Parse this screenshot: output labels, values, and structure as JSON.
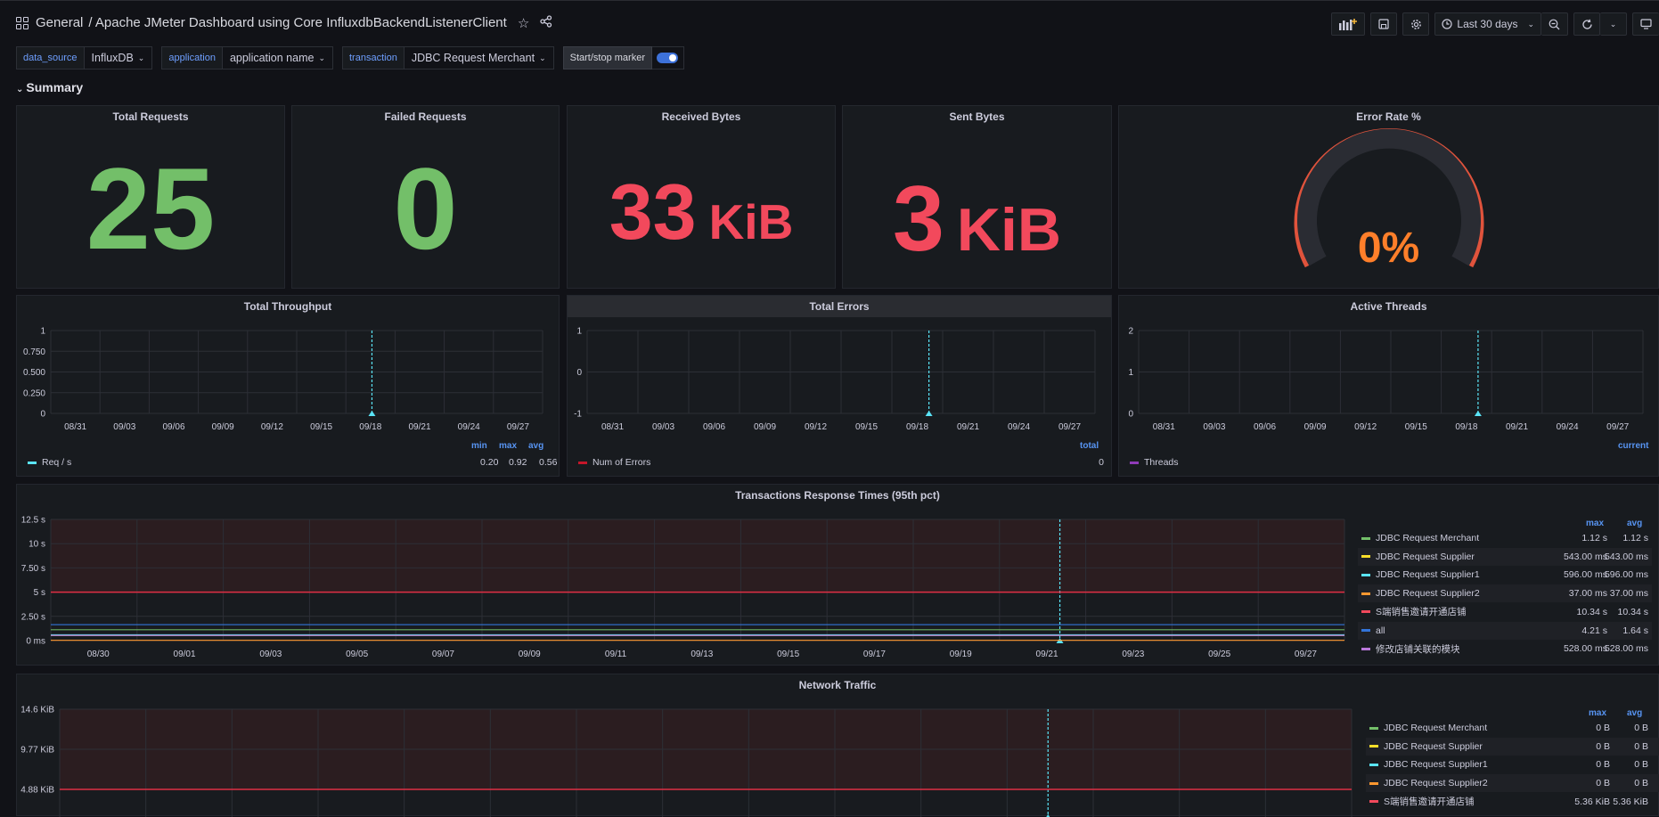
{
  "topbar": {
    "folder": "General",
    "title": "/ Apache JMeter Dashboard using Core InfluxdbBackendListenerClient",
    "time_range": "Last 30 days"
  },
  "variables": [
    {
      "label": "data_source",
      "value": "InfluxDB"
    },
    {
      "label": "application",
      "value": "application name"
    },
    {
      "label": "transaction",
      "value": "JDBC Request Merchant"
    }
  ],
  "marker": {
    "label": "Start/stop marker",
    "enabled": true
  },
  "row": {
    "title": "Summary"
  },
  "stats": {
    "total_requests": {
      "title": "Total Requests",
      "value": "25",
      "color": "#73bf69"
    },
    "failed_requests": {
      "title": "Failed Requests",
      "value": "0",
      "color": "#73bf69"
    },
    "received_bytes": {
      "title": "Received Bytes",
      "value": "33",
      "unit": "KiB",
      "color": "#f2495c"
    },
    "sent_bytes": {
      "title": "Sent Bytes",
      "value": "3",
      "unit": "KiB",
      "color": "#f2495c"
    },
    "error_rate": {
      "title": "Error Rate %",
      "value": "0%",
      "color": "#ff7f2a",
      "gauge_color": "#e0533c",
      "fraction": 0
    }
  },
  "colors": {
    "green": "#73bf69",
    "yellow": "#fade2a",
    "cyan": "#5ae4f7",
    "orange": "#ff9830",
    "red": "#f2495c",
    "blue": "#3274d9",
    "purple": "#b877d9",
    "threshold": "#e02f44"
  },
  "chart_data": [
    {
      "type": "line",
      "title": "Total Throughput",
      "x": [
        "08/31",
        "09/03",
        "09/06",
        "09/09",
        "09/12",
        "09/15",
        "09/18",
        "09/21",
        "09/24",
        "09/27"
      ],
      "yticks": [
        "1",
        "0.750",
        "0.500",
        "0.250",
        "0"
      ],
      "ylim": [
        0,
        1
      ],
      "series": [
        {
          "name": "Req / s",
          "min": "0.20",
          "max": "0.92",
          "avg": "0.56",
          "color": "#5ae4f7"
        }
      ],
      "legend_headers": [
        "min",
        "max",
        "avg"
      ]
    },
    {
      "type": "line",
      "title": "Total Errors",
      "x": [
        "08/31",
        "09/03",
        "09/06",
        "09/09",
        "09/12",
        "09/15",
        "09/18",
        "09/21",
        "09/24",
        "09/27"
      ],
      "yticks": [
        "1",
        "0",
        "-1"
      ],
      "ylim": [
        -1,
        1
      ],
      "series": [
        {
          "name": "Num of Errors",
          "total": "0",
          "color": "#c4162a"
        }
      ],
      "legend_headers": [
        "total"
      ]
    },
    {
      "type": "line",
      "title": "Active Threads",
      "x": [
        "08/31",
        "09/03",
        "09/06",
        "09/09",
        "09/12",
        "09/15",
        "09/18",
        "09/21",
        "09/24",
        "09/27"
      ],
      "yticks": [
        "2",
        "1",
        "0"
      ],
      "ylim": [
        0,
        2
      ],
      "series": [
        {
          "name": "Threads",
          "current": "",
          "color": "#8f3bb8"
        }
      ],
      "legend_headers": [
        "current"
      ]
    },
    {
      "type": "line",
      "title": "Transactions Response Times (95th pct)",
      "x": [
        "08/30",
        "09/01",
        "09/03",
        "09/05",
        "09/07",
        "09/09",
        "09/11",
        "09/13",
        "09/15",
        "09/17",
        "09/19",
        "09/21",
        "09/23",
        "09/25",
        "09/27"
      ],
      "yticks": [
        "12.5 s",
        "10 s",
        "7.50 s",
        "5 s",
        "2.50 s",
        "0 ms"
      ],
      "ylim": [
        0,
        12.5
      ],
      "threshold": 5,
      "legend_headers": [
        "max",
        "avg"
      ],
      "series": [
        {
          "name": "JDBC Request Merchant",
          "max": "1.12 s",
          "avg": "1.12 s",
          "color": "#73bf69",
          "level": 1.12
        },
        {
          "name": "JDBC Request Supplier",
          "max": "543.00 ms",
          "avg": "543.00 ms",
          "color": "#fade2a",
          "level": 0.543
        },
        {
          "name": "JDBC Request Supplier1",
          "max": "596.00 ms",
          "avg": "596.00 ms",
          "color": "#5ae4f7",
          "level": 0.596
        },
        {
          "name": "JDBC Request Supplier2",
          "max": "37.00 ms",
          "avg": "37.00 ms",
          "color": "#ff9830",
          "level": 0.037
        },
        {
          "name": "S端销售邀请开通店铺",
          "max": "10.34 s",
          "avg": "10.34 s",
          "color": "#f2495c",
          "level": 10.34
        },
        {
          "name": "all",
          "max": "4.21 s",
          "avg": "1.64 s",
          "color": "#3274d9",
          "level": 1.64
        },
        {
          "name": "修改店铺关联的模块",
          "max": "528.00 ms",
          "avg": "528.00 ms",
          "color": "#b877d9",
          "level": 0.528
        }
      ]
    },
    {
      "type": "line",
      "title": "Network Traffic",
      "yticks": [
        "14.6 KiB",
        "9.77 KiB",
        "4.88 KiB"
      ],
      "legend_headers": [
        "max",
        "avg"
      ],
      "series": [
        {
          "name": "JDBC Request Merchant",
          "max": "0 B",
          "avg": "0 B",
          "color": "#73bf69"
        },
        {
          "name": "JDBC Request Supplier",
          "max": "0 B",
          "avg": "0 B",
          "color": "#fade2a"
        },
        {
          "name": "JDBC Request Supplier1",
          "max": "0 B",
          "avg": "0 B",
          "color": "#5ae4f7"
        },
        {
          "name": "JDBC Request Supplier2",
          "max": "0 B",
          "avg": "0 B",
          "color": "#ff9830"
        },
        {
          "name": "S端销售邀请开通店铺",
          "max": "5.36 KiB",
          "avg": "5.36 KiB",
          "color": "#f2495c"
        }
      ]
    }
  ]
}
